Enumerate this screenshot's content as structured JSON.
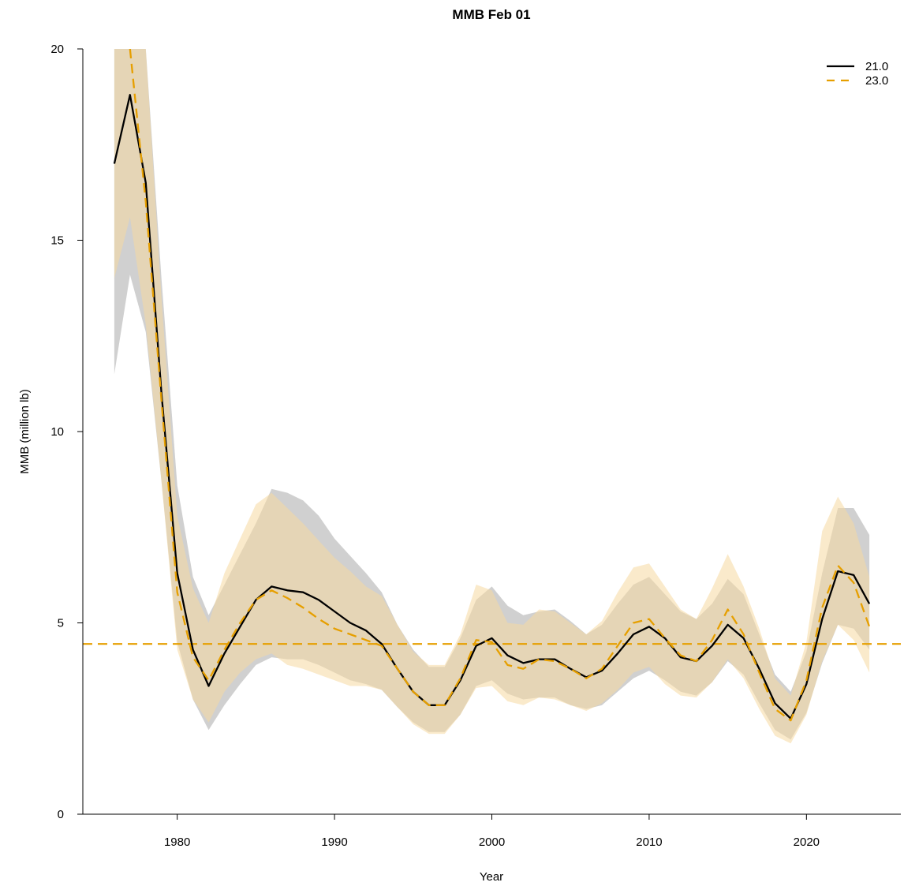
{
  "chart_data": {
    "type": "line",
    "title": "MMB Feb 01",
    "xlabel": "Year",
    "ylabel": "MMB (million lb)",
    "xlim": [
      1974,
      2026
    ],
    "ylim": [
      0,
      20
    ],
    "x_ticks": [
      1980,
      1990,
      2000,
      2010,
      2020
    ],
    "y_ticks": [
      0,
      5,
      10,
      15,
      20
    ],
    "grid": false,
    "legend_position": "top-right",
    "x": [
      1976,
      1977,
      1978,
      1979,
      1980,
      1981,
      1982,
      1983,
      1984,
      1985,
      1986,
      1987,
      1988,
      1989,
      1990,
      1991,
      1992,
      1993,
      1994,
      1995,
      1996,
      1997,
      1998,
      1999,
      2000,
      2001,
      2002,
      2003,
      2004,
      2005,
      2006,
      2007,
      2008,
      2009,
      2010,
      2011,
      2012,
      2013,
      2014,
      2015,
      2016,
      2017,
      2018,
      2019,
      2020,
      2021,
      2022,
      2023,
      2024
    ],
    "series": [
      {
        "name": "21.0",
        "color": "#000000",
        "dash": "solid",
        "band_color": "#aaaaaa",
        "values": [
          17.0,
          18.8,
          16.5,
          11.0,
          6.3,
          4.3,
          3.35,
          4.2,
          4.9,
          5.6,
          5.95,
          5.85,
          5.8,
          5.6,
          5.3,
          5.0,
          4.8,
          4.45,
          3.8,
          3.2,
          2.85,
          2.85,
          3.5,
          4.4,
          4.6,
          4.15,
          3.95,
          4.05,
          4.05,
          3.8,
          3.58,
          3.75,
          4.2,
          4.7,
          4.9,
          4.6,
          4.1,
          4.0,
          4.4,
          4.95,
          4.6,
          3.8,
          2.9,
          2.5,
          3.4,
          5.1,
          6.35,
          6.25,
          5.5
        ],
        "lower": [
          11.5,
          14.1,
          12.6,
          8.7,
          4.5,
          3.0,
          2.2,
          2.85,
          3.4,
          3.9,
          4.1,
          4.05,
          4.05,
          3.9,
          3.7,
          3.5,
          3.4,
          3.25,
          2.8,
          2.4,
          2.15,
          2.15,
          2.6,
          3.35,
          3.5,
          3.15,
          3.0,
          3.05,
          3.05,
          2.85,
          2.75,
          2.85,
          3.2,
          3.55,
          3.75,
          3.5,
          3.2,
          3.1,
          3.45,
          4.0,
          3.65,
          2.9,
          2.2,
          1.95,
          2.65,
          3.95,
          4.95,
          4.85,
          4.3
        ],
        "upper": [
          22.0,
          23.6,
          20.0,
          14.0,
          8.6,
          6.2,
          5.2,
          6.0,
          6.8,
          7.6,
          8.5,
          8.4,
          8.2,
          7.8,
          7.2,
          6.75,
          6.3,
          5.8,
          4.95,
          4.3,
          3.85,
          3.85,
          4.6,
          5.6,
          5.95,
          5.45,
          5.2,
          5.3,
          5.35,
          5.05,
          4.7,
          4.95,
          5.5,
          6.0,
          6.2,
          5.75,
          5.3,
          5.1,
          5.5,
          6.15,
          5.75,
          4.7,
          3.65,
          3.2,
          4.25,
          6.3,
          8.0,
          8.0,
          7.3
        ]
      },
      {
        "name": "23.0",
        "color": "#E69F00",
        "dash": "dashed",
        "band_color": "#f5d8a0",
        "values": [
          null,
          20.0,
          16.0,
          10.8,
          5.8,
          4.1,
          3.5,
          4.3,
          5.0,
          5.6,
          5.85,
          5.65,
          5.4,
          5.1,
          4.85,
          4.7,
          4.55,
          4.4,
          3.8,
          3.2,
          2.85,
          2.85,
          3.55,
          4.55,
          4.5,
          3.9,
          3.8,
          4.05,
          4.0,
          3.8,
          3.55,
          3.8,
          4.4,
          5.0,
          5.1,
          4.6,
          4.15,
          4.0,
          4.55,
          5.35,
          4.7,
          3.7,
          2.75,
          2.45,
          3.5,
          5.4,
          6.5,
          6.05,
          4.9
        ],
        "lower": [
          14.0,
          15.6,
          12.8,
          8.7,
          4.3,
          3.0,
          2.4,
          3.2,
          3.7,
          4.05,
          4.2,
          3.9,
          3.8,
          3.65,
          3.5,
          3.35,
          3.35,
          3.25,
          2.8,
          2.35,
          2.1,
          2.1,
          2.6,
          3.3,
          3.35,
          2.95,
          2.85,
          3.05,
          3.0,
          2.85,
          2.7,
          2.9,
          3.25,
          3.7,
          3.85,
          3.4,
          3.1,
          3.05,
          3.45,
          4.05,
          3.55,
          2.75,
          2.05,
          1.85,
          2.6,
          4.0,
          4.95,
          4.55,
          3.7
        ],
        "upper": [
          25.0,
          26.0,
          20.0,
          13.5,
          7.8,
          5.9,
          5.0,
          6.3,
          7.2,
          8.1,
          8.4,
          8.0,
          7.6,
          7.15,
          6.7,
          6.35,
          5.95,
          5.7,
          4.95,
          4.25,
          3.9,
          3.9,
          4.7,
          6.0,
          5.85,
          5.0,
          4.95,
          5.35,
          5.3,
          5.0,
          4.7,
          5.05,
          5.8,
          6.45,
          6.55,
          5.95,
          5.35,
          5.1,
          5.9,
          6.8,
          5.95,
          4.85,
          3.55,
          3.1,
          4.5,
          7.4,
          8.3,
          7.6,
          6.2
        ]
      }
    ],
    "reference_lines": [
      {
        "orientation": "horizontal",
        "y": 4.45,
        "color": "#E69F00",
        "dash": "dashed"
      }
    ]
  }
}
